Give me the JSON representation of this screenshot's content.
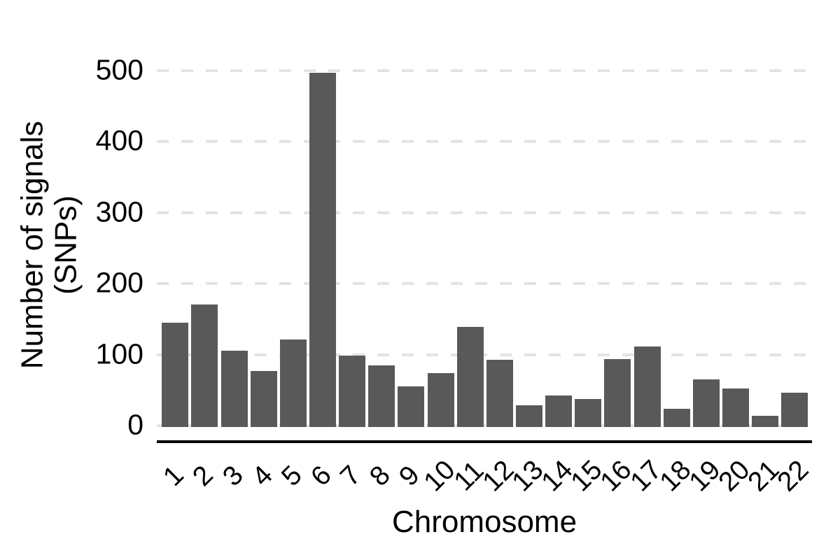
{
  "chart_data": {
    "type": "bar",
    "title": "",
    "xlabel": "Chromosome",
    "ylabel_line1": "Number of signals",
    "ylabel_line2": "(SNPs)",
    "categories": [
      "1",
      "2",
      "3",
      "4",
      "5",
      "6",
      "7",
      "8",
      "9",
      "10",
      "11",
      "12",
      "13",
      "14",
      "15",
      "16",
      "17",
      "18",
      "19",
      "20",
      "21",
      "22"
    ],
    "values": [
      145,
      171,
      106,
      77,
      121,
      497,
      99,
      85,
      55,
      74,
      139,
      93,
      29,
      42,
      37,
      94,
      111,
      24,
      65,
      52,
      14,
      46
    ],
    "ylim": [
      0,
      500
    ],
    "yticks": [
      0,
      100,
      200,
      300,
      400,
      500
    ],
    "grid": "horizontal-dashed",
    "legend": "none",
    "x_tick_rotation_deg": -45,
    "colors": {
      "bar": "#595959",
      "gridline": "#e3e3e3",
      "axis_line": "#000000",
      "text": "#000000",
      "background": "#ffffff"
    }
  }
}
